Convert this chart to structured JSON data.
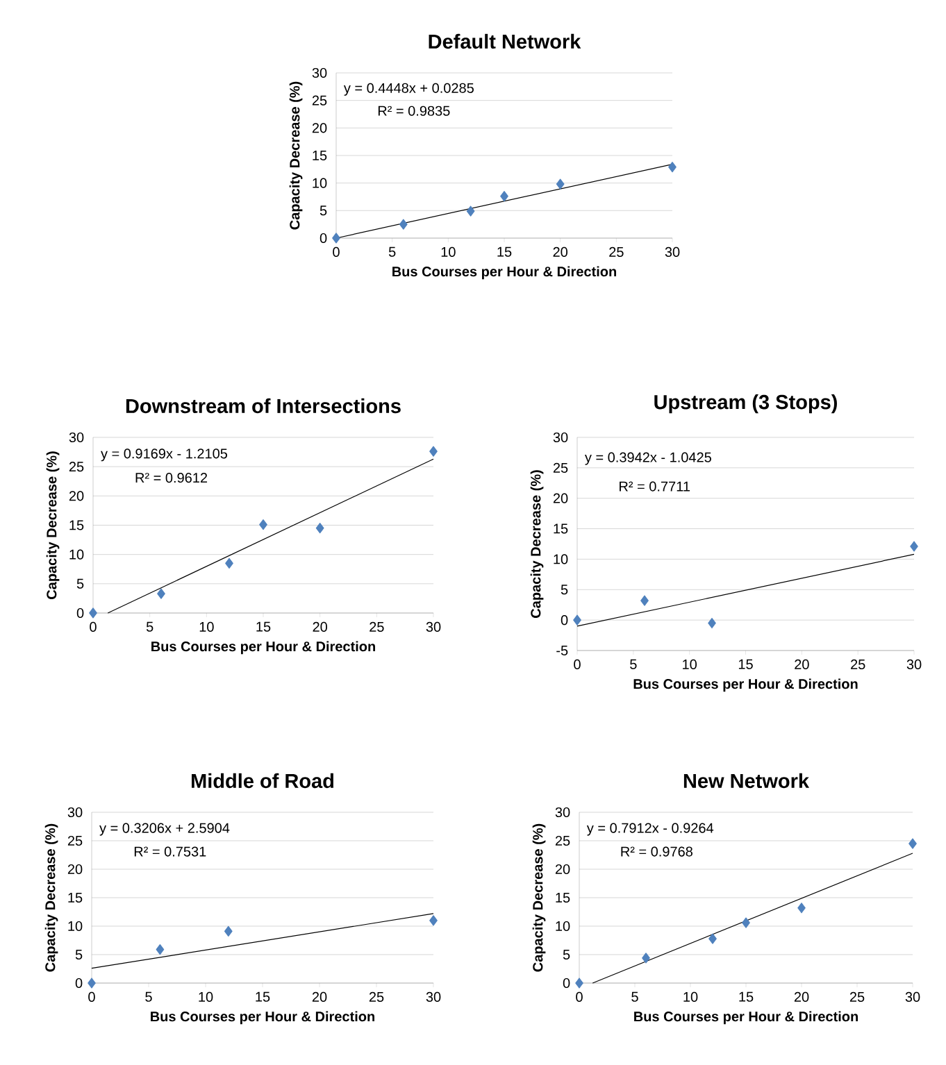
{
  "chart_data": [
    {
      "type": "scatter",
      "title": "Default Network",
      "xlabel": "Bus Courses per Hour & Direction",
      "ylabel": "Capacity Decrease (%)",
      "xlim": [
        0,
        30
      ],
      "ylim": [
        0,
        30
      ],
      "xticks": [
        0,
        5,
        10,
        15,
        20,
        25,
        30
      ],
      "yticks": [
        0,
        5,
        10,
        15,
        20,
        25,
        30
      ],
      "grid": "y",
      "marker": "diamond",
      "annotations": [
        "y = 0.4448x + 0.0285",
        "R² = 0.9835"
      ],
      "series": [
        {
          "color": "#4f81bd",
          "x": [
            0,
            6,
            12,
            15,
            20,
            30
          ],
          "values": [
            0,
            2.5,
            4.9,
            7.6,
            9.8,
            12.9
          ]
        },
        {
          "type": "line",
          "marker": "none",
          "color": "#000000",
          "x": [
            0,
            30
          ],
          "values": [
            0,
            13.4
          ]
        }
      ]
    },
    {
      "type": "scatter",
      "title": "Downstream of Intersections",
      "xlabel": "Bus Courses per Hour & Direction",
      "ylabel": "Capacity Decrease (%)",
      "xlim": [
        0,
        30
      ],
      "ylim": [
        0,
        30
      ],
      "xticks": [
        0,
        5,
        10,
        15,
        20,
        25,
        30
      ],
      "yticks": [
        0,
        5,
        10,
        15,
        20,
        25,
        30
      ],
      "grid": "y",
      "marker": "diamond",
      "annotations": [
        "y = 0.9169x - 1.2105",
        "R² = 0.9612"
      ],
      "series": [
        {
          "color": "#4f81bd",
          "x": [
            0,
            6,
            12,
            15,
            20,
            30
          ],
          "values": [
            0,
            3.3,
            8.5,
            15.1,
            14.5,
            27.6
          ]
        },
        {
          "type": "line",
          "marker": "none",
          "color": "#000000",
          "x": [
            1.3,
            30
          ],
          "values": [
            0,
            26.3
          ]
        }
      ]
    },
    {
      "type": "scatter",
      "title": "Upstream (3 Stops)",
      "xlabel": "Bus Courses per Hour & Direction",
      "ylabel": "Capacity Decrease (%)",
      "xlim": [
        0,
        30
      ],
      "ylim": [
        -5,
        30
      ],
      "xticks": [
        0,
        5,
        10,
        15,
        20,
        25,
        30
      ],
      "yticks": [
        -5,
        0,
        5,
        10,
        15,
        20,
        25,
        30
      ],
      "grid": "y",
      "marker": "diamond",
      "annotations": [
        "y = 0.3942x - 1.0425",
        "R² = 0.7711"
      ],
      "series": [
        {
          "color": "#4f81bd",
          "x": [
            0,
            6,
            12,
            30
          ],
          "values": [
            0,
            3.2,
            -0.5,
            12.1
          ]
        },
        {
          "type": "line",
          "marker": "none",
          "color": "#000000",
          "x": [
            0,
            30
          ],
          "values": [
            -1.0,
            10.8
          ]
        }
      ]
    },
    {
      "type": "scatter",
      "title": "Middle of Road",
      "xlabel": "Bus Courses per Hour & Direction",
      "ylabel": "Capacity Decrease (%)",
      "xlim": [
        0,
        30
      ],
      "ylim": [
        0,
        30
      ],
      "xticks": [
        0,
        5,
        10,
        15,
        20,
        25,
        30
      ],
      "yticks": [
        0,
        5,
        10,
        15,
        20,
        25,
        30
      ],
      "grid": "y",
      "marker": "diamond",
      "annotations": [
        "y = 0.3206x + 2.5904",
        "R² = 0.7531"
      ],
      "series": [
        {
          "color": "#4f81bd",
          "x": [
            0,
            6,
            12,
            30
          ],
          "values": [
            0,
            5.9,
            9.1,
            11.0
          ]
        },
        {
          "type": "line",
          "marker": "none",
          "color": "#000000",
          "x": [
            0,
            30
          ],
          "values": [
            2.6,
            12.2
          ]
        }
      ]
    },
    {
      "type": "scatter",
      "title": "New Network",
      "xlabel": "Bus Courses per Hour & Direction",
      "ylabel": "Capacity Decrease (%)",
      "xlim": [
        0,
        30
      ],
      "ylim": [
        0,
        30
      ],
      "xticks": [
        0,
        5,
        10,
        15,
        20,
        25,
        30
      ],
      "yticks": [
        0,
        5,
        10,
        15,
        20,
        25,
        30
      ],
      "grid": "y",
      "marker": "diamond",
      "annotations": [
        "y = 0.7912x - 0.9264",
        "R² = 0.9768"
      ],
      "series": [
        {
          "color": "#4f81bd",
          "x": [
            0,
            6,
            12,
            15,
            20,
            30
          ],
          "values": [
            0,
            4.4,
            7.8,
            10.6,
            13.2,
            24.5
          ]
        },
        {
          "type": "line",
          "marker": "none",
          "color": "#000000",
          "x": [
            1.2,
            30
          ],
          "values": [
            0,
            22.8
          ]
        }
      ]
    }
  ]
}
